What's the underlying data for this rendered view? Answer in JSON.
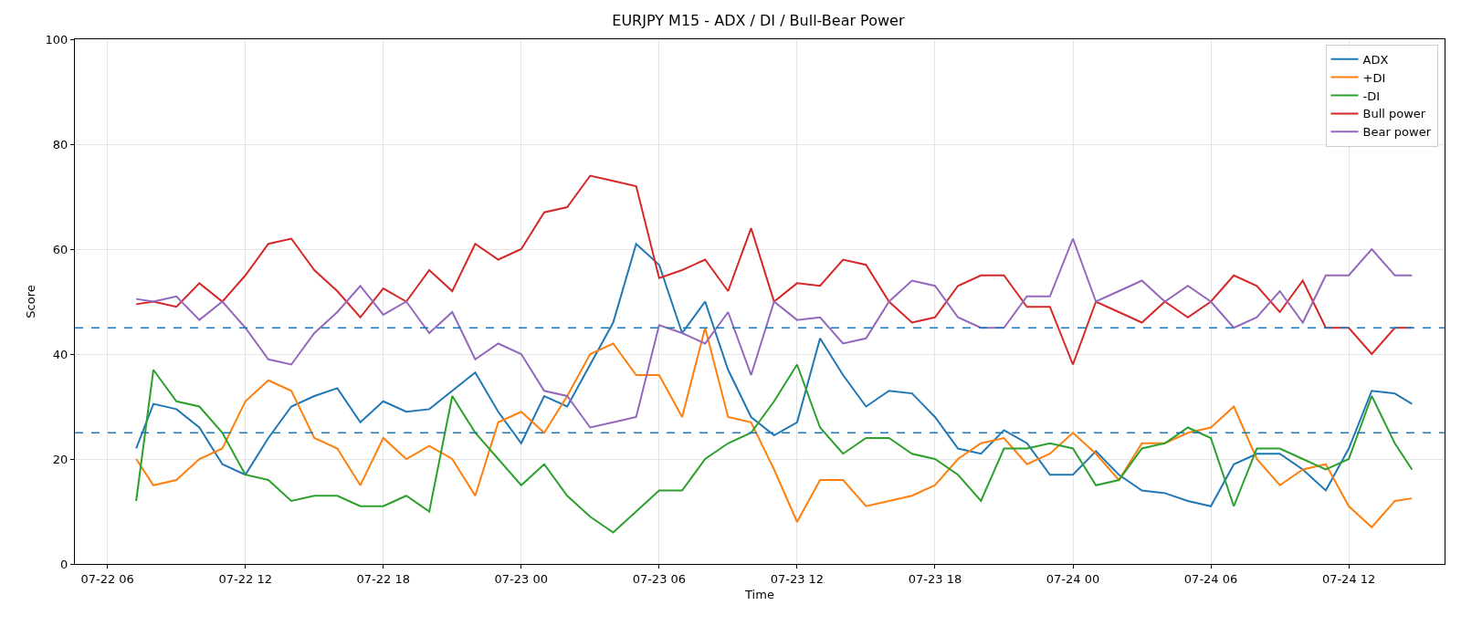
{
  "chart_data": {
    "type": "line",
    "title": "EURJPY M15 - ADX / DI / Bull-Bear Power",
    "xlabel": "Time",
    "ylabel": "Score",
    "x": [
      "--07-22T07:15",
      "--07-22T08:00",
      "--07-22T09:00",
      "--07-22T10:00",
      "--07-22T11:00",
      "--07-22T12:00",
      "--07-22T13:00",
      "--07-22T14:00",
      "--07-22T15:00",
      "--07-22T16:00",
      "--07-22T17:00",
      "--07-22T18:00",
      "--07-22T19:00",
      "--07-22T20:00",
      "--07-22T21:00",
      "--07-22T22:00",
      "--07-22T23:00",
      "--07-23T00:00",
      "--07-23T01:00",
      "--07-23T02:00",
      "--07-23T03:00",
      "--07-23T04:00",
      "--07-23T05:00",
      "--07-23T06:00",
      "--07-23T07:00",
      "--07-23T08:00",
      "--07-23T09:00",
      "--07-23T10:00",
      "--07-23T11:00",
      "--07-23T12:00",
      "--07-23T13:00",
      "--07-23T14:00",
      "--07-23T15:00",
      "--07-23T16:00",
      "--07-23T17:00",
      "--07-23T18:00",
      "--07-23T19:00",
      "--07-23T20:00",
      "--07-23T21:00",
      "--07-23T22:00",
      "--07-23T23:00",
      "--07-24T00:00",
      "--07-24T01:00",
      "--07-24T02:00",
      "--07-24T03:00",
      "--07-24T04:00",
      "--07-24T05:00",
      "--07-24T06:00",
      "--07-24T07:00",
      "--07-24T08:00",
      "--07-24T09:00",
      "--07-24T10:00",
      "--07-24T11:00",
      "--07-24T12:00",
      "--07-24T13:00",
      "--07-24T14:00",
      "--07-24T14:45"
    ],
    "series": [
      {
        "name": "ADX",
        "color": "#1f77b4",
        "values": [
          22,
          30.5,
          29.5,
          26,
          19,
          17,
          24,
          30,
          32,
          33.5,
          27,
          31,
          29,
          29.5,
          33,
          36.5,
          29,
          23,
          32,
          30,
          38,
          46,
          61,
          57,
          44,
          50,
          37,
          28,
          24.5,
          27,
          43,
          36,
          30,
          33,
          32.5,
          28,
          22,
          21,
          25.5,
          23,
          17,
          17,
          21.5,
          17,
          14,
          13.5,
          12,
          11,
          19,
          21,
          21,
          18,
          14,
          22,
          33,
          32.5,
          30.5
        ]
      },
      {
        "name": "+DI",
        "color": "#ff7f0e",
        "values": [
          20,
          15,
          16,
          20,
          22,
          31,
          35,
          33,
          24,
          22,
          15,
          24,
          20,
          22.5,
          20,
          13,
          27,
          29,
          25,
          32,
          40,
          42,
          36,
          36,
          28,
          45,
          28,
          27,
          18,
          8,
          16,
          16,
          11,
          12,
          13,
          15,
          20,
          23,
          24,
          19,
          21,
          25,
          21,
          16,
          23,
          23,
          25,
          26,
          30,
          20,
          15,
          18,
          19,
          11,
          7,
          12,
          12.5
        ]
      },
      {
        "name": "-DI",
        "color": "#2ca02c",
        "values": [
          12,
          37,
          31,
          30,
          25,
          17,
          16,
          12,
          13,
          13,
          11,
          11,
          13,
          10,
          32,
          25,
          20,
          15,
          19,
          13,
          9,
          6,
          10,
          14,
          14,
          20,
          23,
          25,
          31,
          38,
          26,
          21,
          24,
          24,
          21,
          20,
          17,
          12,
          22,
          22,
          23,
          22,
          15,
          16,
          22,
          23,
          26,
          24,
          11,
          22,
          22,
          20,
          18,
          20,
          32,
          23,
          18
        ]
      },
      {
        "name": "Bull power",
        "color": "#d62728",
        "values": [
          49.5,
          50,
          49,
          53.5,
          50,
          55,
          61,
          62,
          56,
          52,
          47,
          52.5,
          50,
          56,
          52,
          61,
          58,
          60,
          67,
          68,
          74,
          73,
          72,
          54.5,
          56,
          58,
          52,
          64,
          50,
          53.5,
          53,
          58,
          57,
          50,
          46,
          47,
          53,
          55,
          55,
          49,
          49,
          38,
          50,
          48,
          46,
          50,
          47,
          50,
          55,
          53,
          48,
          54,
          45,
          45,
          40,
          45,
          45
        ]
      },
      {
        "name": "Bear power",
        "color": "#9467bd",
        "values": [
          50.5,
          50,
          51,
          46.5,
          50,
          45,
          39,
          38,
          44,
          48,
          53,
          47.5,
          50,
          44,
          48,
          39,
          42,
          40,
          33,
          32,
          26,
          27,
          28,
          45.5,
          44,
          42,
          48,
          36,
          50,
          46.5,
          47,
          42,
          43,
          50,
          54,
          53,
          47,
          45,
          45,
          51,
          51,
          62,
          50,
          52,
          54,
          50,
          53,
          50,
          45,
          47,
          52,
          46,
          55,
          55,
          60,
          55,
          55
        ]
      }
    ],
    "xlim": [
      "--07-22T04:35",
      "--07-24T16:10"
    ],
    "xticks": [
      {
        "value": "--07-22T06:00",
        "label": "07-22 06"
      },
      {
        "value": "--07-22T12:00",
        "label": "07-22 12"
      },
      {
        "value": "--07-22T18:00",
        "label": "07-22 18"
      },
      {
        "value": "--07-23T00:00",
        "label": "07-23 00"
      },
      {
        "value": "--07-23T06:00",
        "label": "07-23 06"
      },
      {
        "value": "--07-23T12:00",
        "label": "07-23 12"
      },
      {
        "value": "--07-23T18:00",
        "label": "07-23 18"
      },
      {
        "value": "--07-24T00:00",
        "label": "07-24 00"
      },
      {
        "value": "--07-24T06:00",
        "label": "07-24 06"
      },
      {
        "value": "--07-24T12:00",
        "label": "07-24 12"
      }
    ],
    "ylim": [
      0,
      100
    ],
    "yticks": [
      0,
      20,
      40,
      60,
      80,
      100
    ],
    "ref_lines": [
      {
        "axis": "y",
        "value": 45,
        "color": "#1f77b4",
        "line_style": "dashed"
      },
      {
        "axis": "y",
        "value": 25,
        "color": "#1f77b4",
        "line_style": "dashed"
      }
    ],
    "grid": true,
    "legend": "top right",
    "line_style": "solid"
  }
}
